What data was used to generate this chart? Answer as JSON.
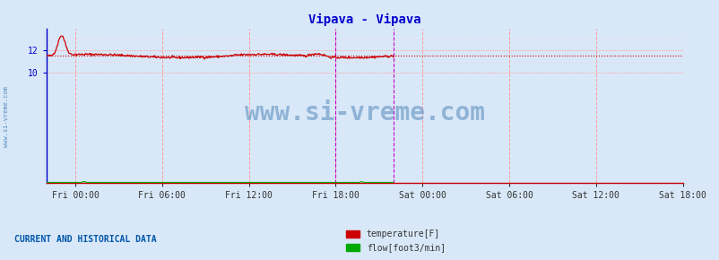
{
  "title": "Vipava - Vipava",
  "title_color": "#0000cc",
  "bg_color": "#d8e8f8",
  "plot_bg_color": "#d8e8f8",
  "grid_color_major": "#ff9999",
  "grid_color_minor": "#ffcccc",
  "x_tick_labels": [
    "Fri 00:00",
    "Fri 06:00",
    "Fri 12:00",
    "Fri 18:00",
    "Sat 00:00",
    "Sat 06:00",
    "Sat 12:00",
    "Sat 18:00"
  ],
  "y_ticks": [
    10,
    12
  ],
  "ylim": [
    0,
    14
  ],
  "xlim": [
    0,
    1440
  ],
  "temp_color": "#cc0000",
  "flow_color": "#00aa00",
  "avg_line_color": "#cc0000",
  "vline_color": "#cc00cc",
  "watermark": "www.si-vreme.com",
  "watermark_color": "#5588bb",
  "footer_text": "CURRENT AND HISTORICAL DATA",
  "footer_color": "#0055aa",
  "legend_temp": "temperature[F]",
  "legend_flow": "flow[foot3/min]"
}
